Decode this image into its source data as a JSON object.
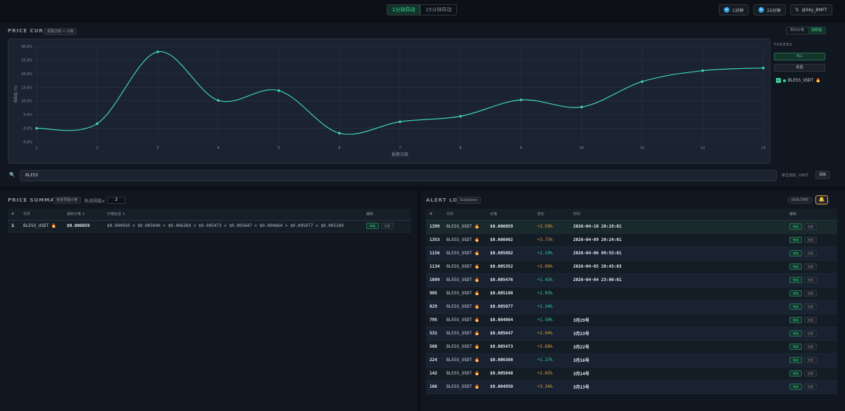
{
  "topbar": {
    "mode_1m": "1分钟异动",
    "mode_15m": "15分钟异动",
    "tg_1m": "1分钟",
    "tg_15m": "15分钟",
    "x_handle": "@Sky_BMFT"
  },
  "curve": {
    "title": "PRICE CURVE",
    "chip_label": "报警次数 × 价格",
    "toggle_left": "相对价格",
    "toggle_right": "涨跌幅",
    "tokens_label": "TOKENS",
    "all_label": "ALL",
    "invert_label": "反选",
    "token_name": "BLESS_USDT",
    "search_value": "BLESS",
    "hint": "单位追加 _USDT",
    "clear_label": "清除"
  },
  "chart_data": {
    "type": "line",
    "xlabel": "报警次数",
    "ylabel": "涨跌幅 (%)",
    "x": [
      1,
      2,
      3,
      4,
      5,
      6,
      7,
      8,
      9,
      10,
      11,
      12,
      13
    ],
    "series": [
      {
        "name": "BLESS_USDT",
        "values": [
          0.0,
          1.7,
          28.0,
          10.2,
          13.8,
          -1.8,
          2.4,
          4.4,
          10.4,
          7.8,
          17.1,
          21.1,
          22.1
        ]
      }
    ],
    "ylim": [
      -5,
      30
    ],
    "yticks": [
      30,
      25,
      20,
      15,
      10,
      5,
      0,
      -5
    ],
    "ytick_labels": [
      "30.0%",
      "25.0%",
      "20.0%",
      "15.0%",
      "10.0%",
      "5.0%",
      "0.0%",
      "-5.0%"
    ],
    "grid": true,
    "color": "#3fd3b6"
  },
  "summary": {
    "title": "PRICE SUMMARY",
    "chip_label": "黄金预警价格",
    "threshold_label": "轨迹阈值≥",
    "threshold_value": "3",
    "headers": [
      "#",
      "代币",
      "最新价格 ↕",
      "价格轨迹 ↕",
      "编辑"
    ],
    "rows": [
      {
        "idx": "1",
        "token": "BLESS_USDT",
        "price": "$0.006059",
        "trail": "$0.004950 > $0.005040 > $0.006360 > $0.005473 > $0.005647 > $0.004864 > $0.005077 > $0.005180",
        "btn_a": "单选",
        "btn_b": "信息"
      }
    ]
  },
  "alert": {
    "title": "ALERT LOG",
    "chip_label": "Supabase",
    "realtime": "REALTIME",
    "headers": [
      "#",
      "代币",
      "价格",
      "变化",
      "时间",
      "编辑"
    ],
    "btn_a": "单选",
    "btn_b": "信息",
    "rows": [
      {
        "id": "1399",
        "token": "BLESS_USDT",
        "price": "$0.006059",
        "change": "+2.59%",
        "time": "2026-04-10 20:19:01"
      },
      {
        "id": "1353",
        "token": "BLESS_USDT",
        "price": "$0.006002",
        "change": "+3.73%",
        "time": "2026-04-09 20:24:01"
      },
      {
        "id": "1156",
        "token": "BLESS_USDT",
        "price": "$0.005802",
        "change": "+1.19%",
        "time": "2026-04-06 09:53:01"
      },
      {
        "id": "1134",
        "token": "BLESS_USDT",
        "price": "$0.005352",
        "change": "+2.00%",
        "time": "2026-04-05 20:43:03"
      },
      {
        "id": "1099",
        "token": "BLESS_USDT",
        "price": "$0.005476",
        "change": "+1.43%",
        "time": "2026-04-04 23:06:01"
      },
      {
        "id": "905",
        "token": "BLESS_USDT",
        "price": "$0.005180",
        "change": "+1.03%",
        "time": ""
      },
      {
        "id": "829",
        "token": "BLESS_USDT",
        "price": "$0.005077",
        "change": "+1.24%",
        "time": ""
      },
      {
        "id": "795",
        "token": "BLESS_USDT",
        "price": "$0.004864",
        "change": "+1.50%",
        "time": "3月29号"
      },
      {
        "id": "531",
        "token": "BLESS_USDT",
        "price": "$0.005647",
        "change": "+2.04%",
        "time": "3月23号"
      },
      {
        "id": "508",
        "token": "BLESS_USDT",
        "price": "$0.005473",
        "change": "+2.68%",
        "time": "3月22号"
      },
      {
        "id": "224",
        "token": "BLESS_USDT",
        "price": "$0.006360",
        "change": "+1.27%",
        "time": "3月16号"
      },
      {
        "id": "142",
        "token": "BLESS_USDT",
        "price": "$0.005040",
        "change": "+2.65%",
        "time": "3月14号"
      },
      {
        "id": "106",
        "token": "BLESS_USDT",
        "price": "$0.004950",
        "change": "+3.34%",
        "time": "3月13号"
      }
    ]
  }
}
